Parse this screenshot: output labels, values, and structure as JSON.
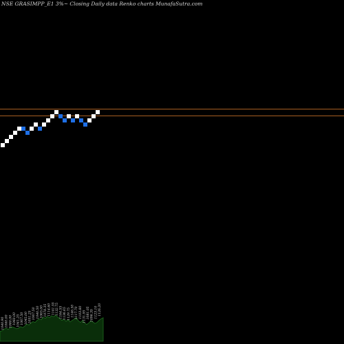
{
  "chart_data": {
    "type": "renko",
    "title": "NSE GRASIMPP_E1 3%~  Closing Daily data  Renko  charts MunafaSutra.com",
    "colors": {
      "background": "#000000",
      "up_brick": "#ffffff",
      "down_brick": "#1e6fe6",
      "reference_line": "#c87028",
      "volume_fill": "#0a2e0a",
      "volume_stroke": "#1f6b1f",
      "volume_label": "#d8d8d8"
    },
    "bricks": [
      {
        "dir": "up",
        "level": 0
      },
      {
        "dir": "up",
        "level": 1
      },
      {
        "dir": "up",
        "level": 2
      },
      {
        "dir": "up",
        "level": 3
      },
      {
        "dir": "up",
        "level": 4
      },
      {
        "dir": "down",
        "level": 4
      },
      {
        "dir": "down",
        "level": 3
      },
      {
        "dir": "up",
        "level": 4
      },
      {
        "dir": "up",
        "level": 5
      },
      {
        "dir": "down",
        "level": 4
      },
      {
        "dir": "up",
        "level": 5
      },
      {
        "dir": "up",
        "level": 6
      },
      {
        "dir": "up",
        "level": 7
      },
      {
        "dir": "up",
        "level": 8
      },
      {
        "dir": "down",
        "level": 7
      },
      {
        "dir": "down",
        "level": 6
      },
      {
        "dir": "up",
        "level": 7
      },
      {
        "dir": "down",
        "level": 6
      },
      {
        "dir": "up",
        "level": 7
      },
      {
        "dir": "down",
        "level": 6
      },
      {
        "dir": "down",
        "level": 5
      },
      {
        "dir": "up",
        "level": 6
      },
      {
        "dir": "up",
        "level": 7
      },
      {
        "dir": "up",
        "level": 8
      }
    ],
    "reference_lines": [
      8.3,
      6.7
    ],
    "volume_labels": [
      "1040.90",
      "1060.00",
      "1060.00",
      "1060.00",
      "1041.25",
      "1067.50",
      "1045.00",
      "1051.25",
      "1067.50",
      "1040.50",
      "1065.00",
      "1078.35",
      "1114.60",
      "1141.55",
      "1132.75",
      "1164.55",
      "1136.65",
      "1129.75",
      "1146.50",
      "1117.70",
      "1103.80",
      "1131.95",
      "1081.05",
      "1096.35",
      "1123.10",
      "1126.20"
    ],
    "volume_profile": [
      0.38,
      0.4,
      0.46,
      0.5,
      0.45,
      0.52,
      0.55,
      0.52,
      0.48,
      0.5,
      0.56,
      0.52,
      0.58,
      0.66,
      0.62,
      0.7,
      0.75,
      0.72,
      0.8,
      0.86,
      0.82,
      0.92,
      0.88,
      0.95,
      0.9,
      0.98,
      0.94,
      1.0,
      0.92,
      0.86,
      0.8,
      0.84,
      0.76,
      0.82,
      0.74,
      0.8,
      0.85,
      0.9,
      0.78,
      0.72,
      0.8,
      0.7,
      0.64,
      0.7,
      0.78,
      0.74,
      0.68,
      0.72,
      0.8,
      0.86,
      0.9
    ]
  }
}
